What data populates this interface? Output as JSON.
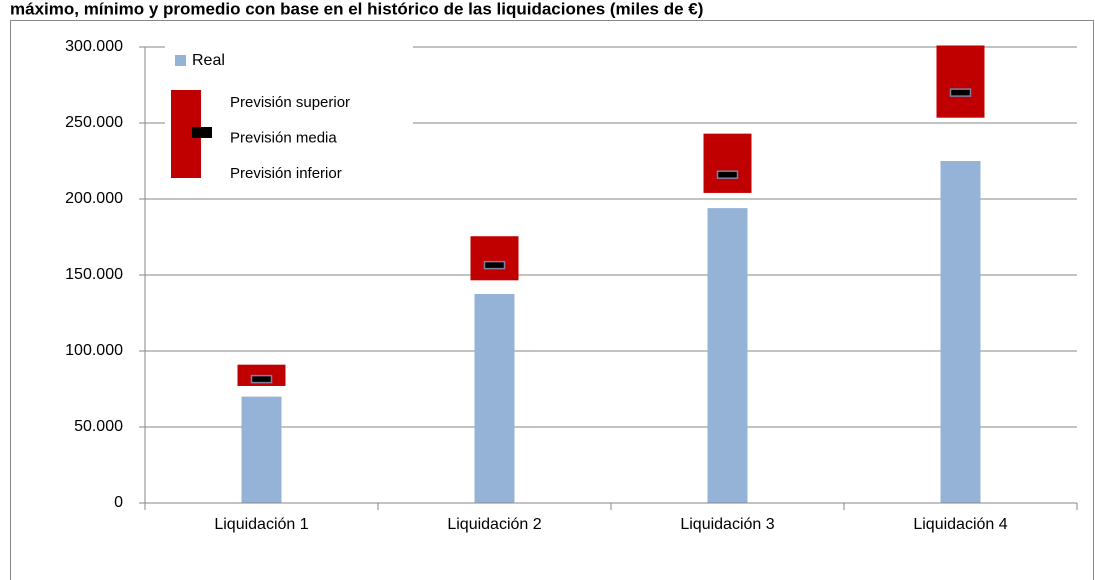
{
  "chart_data": {
    "type": "range_bar",
    "title": "máximo, mínimo y promedio con base en el histórico de las liquidaciones (miles de €)",
    "categories": [
      "Liquidación 1",
      "Liquidación 2",
      "Liquidación 3",
      "Liquidación 4"
    ],
    "series": [
      {
        "name": "Real",
        "color": "#95b3d7",
        "values": [
          70000,
          137500,
          194000,
          225000
        ]
      },
      {
        "name": "Previsión superior",
        "color": "#c00000",
        "values": [
          91000,
          175500,
          243000,
          301000
        ]
      },
      {
        "name": "Previsión media",
        "color": "#000000",
        "values": [
          81500,
          156500,
          216000,
          270000
        ]
      },
      {
        "name": "Previsión inferior",
        "color": "#c00000",
        "values": [
          77000,
          146500,
          204000,
          253500
        ]
      }
    ],
    "ylim": [
      0,
      300000
    ],
    "yticks": [
      0,
      {
        "value": 50000,
        "label": "50.000"
      },
      {
        "value": 100000,
        "label": "100.000"
      },
      {
        "value": 150000,
        "label": "150.000"
      },
      {
        "value": 200000,
        "label": "200.000"
      },
      {
        "value": 250000,
        "label": "250.000"
      },
      {
        "value": 300000,
        "label": "300.000"
      }
    ],
    "grid": true
  }
}
